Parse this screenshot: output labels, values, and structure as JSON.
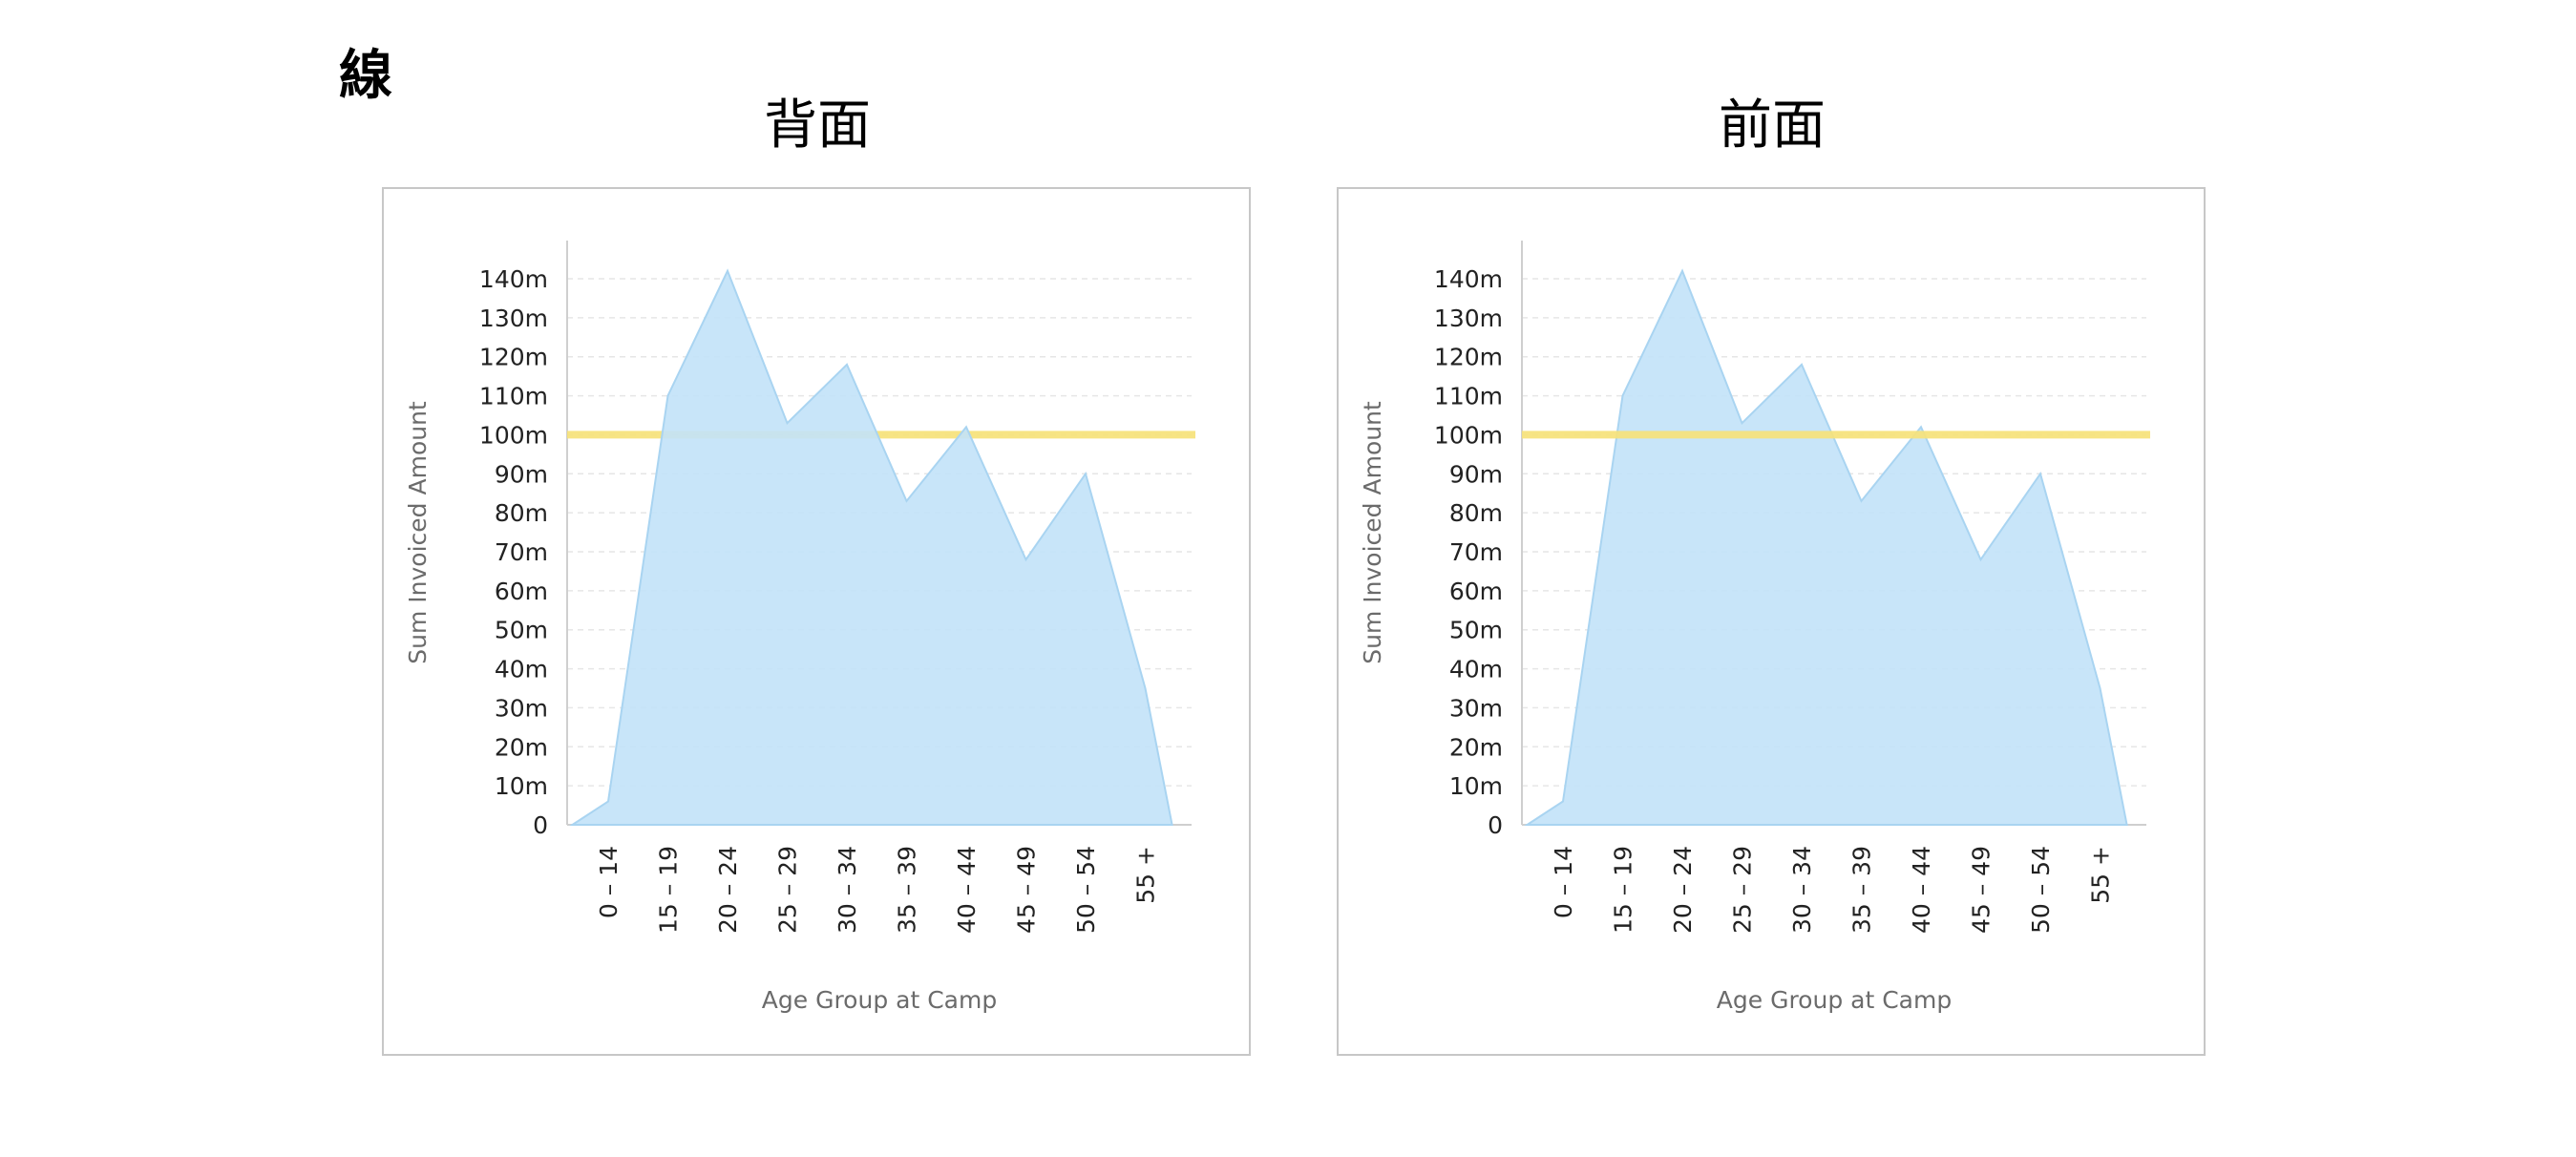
{
  "page": {
    "title": "線"
  },
  "colors": {
    "area_fill": "#c2e2f8",
    "area_stroke": "#a9d4f1",
    "reference_line": "#f6e27a",
    "grid": "#e6e6e6"
  },
  "chart_data": [
    {
      "type": "area",
      "title": "背面",
      "xlabel": "Age Group at Camp",
      "ylabel": "Sum Invoiced Amount",
      "categories": [
        "0 – 14",
        "15 – 19",
        "20 – 24",
        "25 – 29",
        "30 – 34",
        "35 – 39",
        "40 – 44",
        "45 – 49",
        "50 – 54",
        "55 +"
      ],
      "points": [
        {
          "x": -0.6,
          "y": 0
        },
        {
          "x": 0,
          "y": 6
        },
        {
          "x": 1,
          "y": 110
        },
        {
          "x": 2,
          "y": 142
        },
        {
          "x": 3,
          "y": 103
        },
        {
          "x": 4,
          "y": 118
        },
        {
          "x": 5,
          "y": 83
        },
        {
          "x": 6,
          "y": 102
        },
        {
          "x": 7,
          "y": 68
        },
        {
          "x": 8,
          "y": 90
        },
        {
          "x": 9,
          "y": 35
        },
        {
          "x": 9.45,
          "y": 0
        }
      ],
      "reference_line": {
        "y": 100,
        "layer": "behind"
      },
      "y_unit": "m",
      "ylim": [
        0,
        145
      ],
      "y_ticks": [
        0,
        10,
        20,
        30,
        40,
        50,
        60,
        70,
        80,
        90,
        100,
        110,
        120,
        130,
        140
      ],
      "grid": true
    },
    {
      "type": "area",
      "title": "前面",
      "xlabel": "Age Group at Camp",
      "ylabel": "Sum Invoiced Amount",
      "categories": [
        "0 – 14",
        "15 – 19",
        "20 – 24",
        "25 – 29",
        "30 – 34",
        "35 – 39",
        "40 – 44",
        "45 – 49",
        "50 – 54",
        "55 +"
      ],
      "points": [
        {
          "x": -0.6,
          "y": 0
        },
        {
          "x": 0,
          "y": 6
        },
        {
          "x": 1,
          "y": 110
        },
        {
          "x": 2,
          "y": 142
        },
        {
          "x": 3,
          "y": 103
        },
        {
          "x": 4,
          "y": 118
        },
        {
          "x": 5,
          "y": 83
        },
        {
          "x": 6,
          "y": 102
        },
        {
          "x": 7,
          "y": 68
        },
        {
          "x": 8,
          "y": 90
        },
        {
          "x": 9,
          "y": 35
        },
        {
          "x": 9.45,
          "y": 0
        }
      ],
      "reference_line": {
        "y": 100,
        "layer": "front"
      },
      "y_unit": "m",
      "ylim": [
        0,
        145
      ],
      "y_ticks": [
        0,
        10,
        20,
        30,
        40,
        50,
        60,
        70,
        80,
        90,
        100,
        110,
        120,
        130,
        140
      ],
      "grid": true
    }
  ]
}
